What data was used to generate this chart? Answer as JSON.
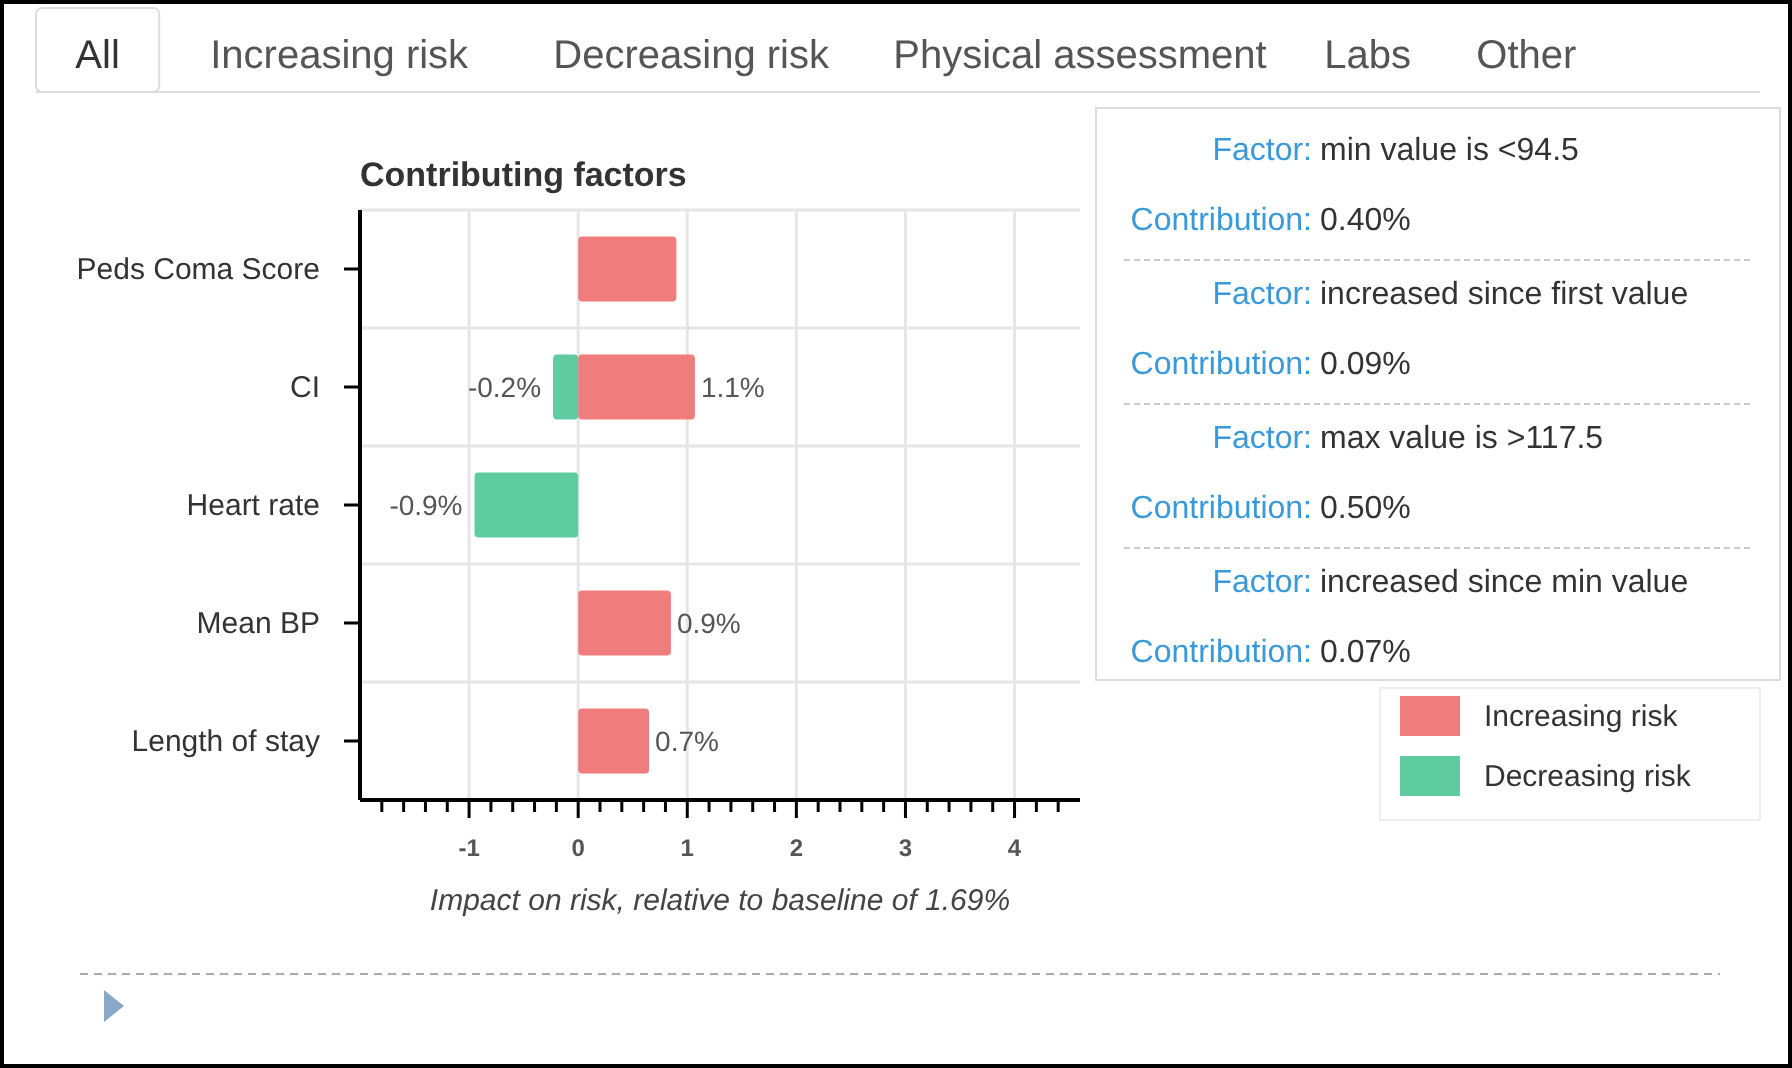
{
  "chart_data": {
    "type": "bar",
    "orientation": "horizontal",
    "title": "Contributing factors",
    "xlabel": "Impact on risk, relative to baseline of 1.69%",
    "categories": [
      "Peds Coma Score",
      "CI",
      "Heart rate",
      "Mean BP",
      "Length of stay"
    ],
    "series": [
      {
        "name": "Increasing risk",
        "color": "#ef7d7b",
        "values": [
          0.9,
          1.07,
          null,
          0.85,
          0.65
        ],
        "value_labels": [
          null,
          "1.1%",
          null,
          "0.9%",
          "0.7%"
        ]
      },
      {
        "name": "Decreasing risk",
        "color": "#5ecba1",
        "values": [
          null,
          -0.23,
          -0.95,
          null,
          null
        ],
        "value_labels": [
          null,
          "-0.2%",
          "-0.9%",
          null,
          null
        ]
      }
    ],
    "xlim": [
      -2,
      4.6
    ],
    "xticks": [
      {
        "value": -1.8,
        "label": null
      },
      {
        "value": -1.6,
        "label": null
      },
      {
        "value": -1.4,
        "label": null
      },
      {
        "value": -1.2,
        "label": null
      },
      -1,
      {
        "value": -0.8,
        "label": null
      },
      {
        "value": -0.6,
        "label": null
      },
      {
        "value": -0.4,
        "label": null
      },
      {
        "value": -0.2,
        "label": null
      },
      0,
      {
        "value": 0.2,
        "label": null
      },
      {
        "value": 0.4,
        "label": null
      },
      {
        "value": 0.6,
        "label": null
      },
      {
        "value": 0.8,
        "label": null
      },
      1,
      {
        "value": 1.2,
        "label": null
      },
      {
        "value": 1.4,
        "label": null
      },
      {
        "value": 1.6,
        "label": null
      },
      {
        "value": 1.8,
        "label": null
      },
      2,
      {
        "value": 2.2,
        "label": null
      },
      {
        "value": 2.4,
        "label": null
      },
      {
        "value": 2.6,
        "label": null
      },
      {
        "value": 2.8,
        "label": null
      },
      3,
      {
        "value": 3.2,
        "label": null
      },
      {
        "value": 3.4,
        "label": null
      },
      {
        "value": 3.6,
        "label": null
      },
      {
        "value": 3.8,
        "label": null
      },
      4,
      {
        "value": 4.2,
        "label": null
      },
      {
        "value": 4.4,
        "label": null
      }
    ],
    "grid": true,
    "legend": "bottom right",
    "annotations": [
      "All",
      "Increasing risk",
      "Decreasing risk",
      "Physical assessment",
      "Labs",
      "Other",
      "Factor: min value is <94.5",
      "Contribution: 0.40%",
      "Factor: increased since first value",
      "Contribution: 0.09%",
      "Factor: max value is >117.5",
      "Contribution: 0.50%",
      "Factor: increased since min value",
      "Contribution: 0.07%"
    ]
  }
}
